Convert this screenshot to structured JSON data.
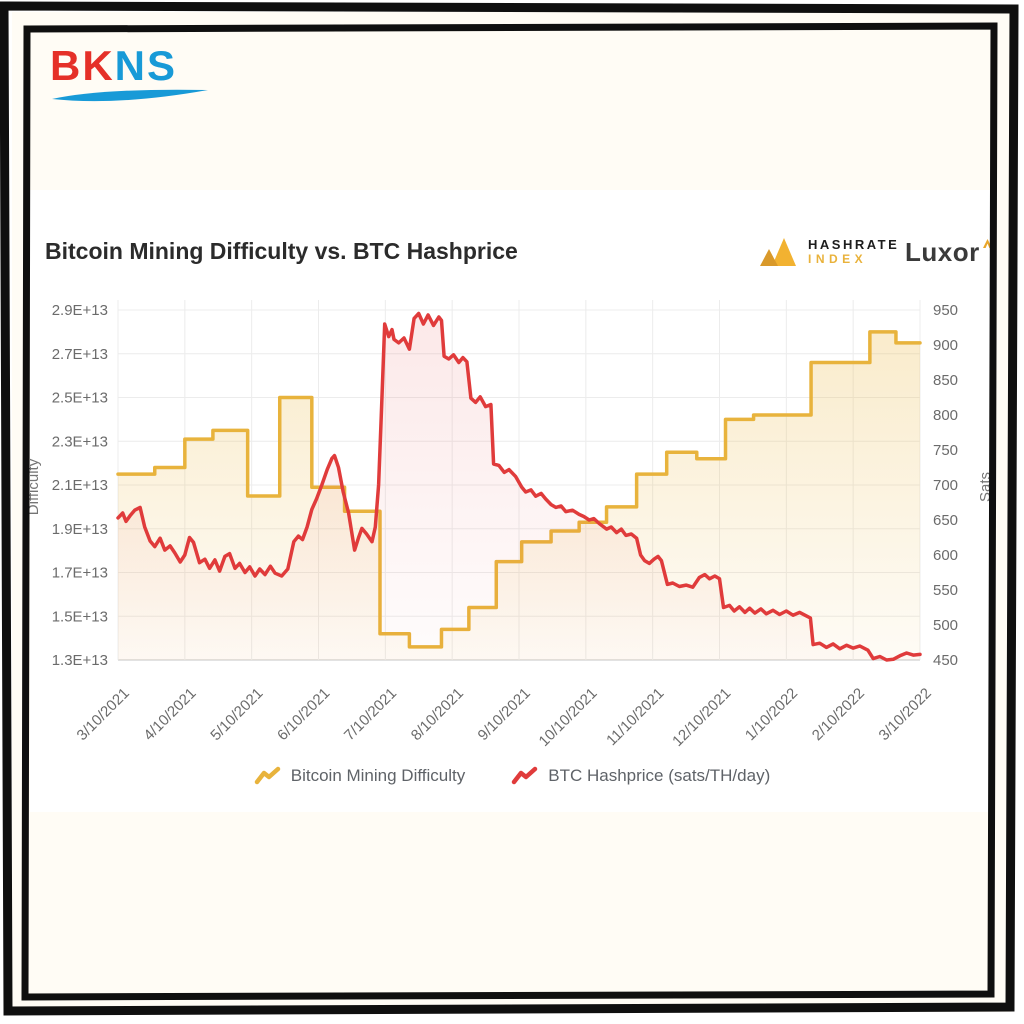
{
  "brand": {
    "bk": "BK",
    "ns": "NS"
  },
  "header": {
    "title": "Bitcoin Mining Difficulty vs. BTC Hashprice",
    "hashrate_index": {
      "line1": "HASHRATE",
      "line2": "INDEX"
    },
    "luxor": "Luxor"
  },
  "legend": [
    {
      "label": "Bitcoin Mining Difficulty",
      "color": "#e8b33c"
    },
    {
      "label": "BTC Hashprice (sats/TH/day)",
      "color": "#e03b3b"
    }
  ],
  "colors": {
    "difficulty_line": "#e8b33c",
    "hashprice_line": "#e03b3b",
    "grid": "#ececec",
    "axis_line": "#d9d9d9",
    "tick_text": "#6b6b6b",
    "bkns_red": "#e53028",
    "bkns_blue": "#189ad7",
    "hashrate_gold": "#ecb23d"
  },
  "chart_data": {
    "type": "line",
    "title": "Bitcoin Mining Difficulty vs. BTC Hashprice",
    "grid": true,
    "legend_position": "bottom",
    "x_axis": {
      "tick_labels": [
        "3/10/2021",
        "4/10/2021",
        "5/10/2021",
        "6/10/2021",
        "7/10/2021",
        "8/10/2021",
        "9/10/2021",
        "10/10/2021",
        "11/10/2021",
        "12/10/2021",
        "1/10/2022",
        "2/10/2022",
        "3/10/2022"
      ],
      "months_span": 12
    },
    "y_left": {
      "label": "Difficulty",
      "tick_labels": [
        "2.9E+13",
        "2.7E+13",
        "2.5E+13",
        "2.3E+13",
        "2.1E+13",
        "1.9E+13",
        "1.7E+13",
        "1.5E+13",
        "1.3E+13"
      ],
      "range_e13": [
        1.3,
        2.9
      ]
    },
    "y_right": {
      "label": "Sats",
      "tick_labels": [
        "950",
        "900",
        "850",
        "800",
        "750",
        "700",
        "650",
        "600",
        "550",
        "500",
        "450"
      ],
      "range": [
        450,
        950
      ]
    },
    "series": [
      {
        "name": "Bitcoin Mining Difficulty",
        "axis": "left",
        "style": "step",
        "unit": "1e13",
        "color": "#e8b33c",
        "points": [
          [
            0,
            2.15
          ],
          [
            0.55,
            2.18
          ],
          [
            1,
            2.31
          ],
          [
            1.42,
            2.35
          ],
          [
            1.94,
            2.05
          ],
          [
            2.42,
            2.5
          ],
          [
            2.9,
            2.09
          ],
          [
            3.39,
            1.98
          ],
          [
            3.92,
            1.42
          ],
          [
            4.36,
            1.36
          ],
          [
            4.84,
            1.44
          ],
          [
            5.25,
            1.54
          ],
          [
            5.66,
            1.75
          ],
          [
            6.04,
            1.84
          ],
          [
            6.48,
            1.89
          ],
          [
            6.9,
            1.93
          ],
          [
            7.31,
            2.0
          ],
          [
            7.76,
            2.15
          ],
          [
            8.21,
            2.25
          ],
          [
            8.66,
            2.22
          ],
          [
            9.09,
            2.4
          ],
          [
            9.51,
            2.42
          ],
          [
            10.37,
            2.66
          ],
          [
            11.25,
            2.8
          ],
          [
            11.64,
            2.75
          ]
        ],
        "end_month": 12
      },
      {
        "name": "BTC Hashprice (sats/TH/day)",
        "axis": "right",
        "style": "line",
        "unit": "sats/TH/day",
        "color": "#e03b3b",
        "points": [
          [
            0,
            653
          ],
          [
            0.07,
            660
          ],
          [
            0.12,
            648
          ],
          [
            0.18,
            656
          ],
          [
            0.25,
            664
          ],
          [
            0.33,
            668
          ],
          [
            0.4,
            640
          ],
          [
            0.48,
            620
          ],
          [
            0.55,
            612
          ],
          [
            0.63,
            624
          ],
          [
            0.7,
            607
          ],
          [
            0.78,
            613
          ],
          [
            0.85,
            603
          ],
          [
            0.93,
            590
          ],
          [
            1,
            600
          ],
          [
            1.07,
            625
          ],
          [
            1.13,
            618
          ],
          [
            1.22,
            589
          ],
          [
            1.3,
            594
          ],
          [
            1.37,
            581
          ],
          [
            1.45,
            593
          ],
          [
            1.52,
            577
          ],
          [
            1.6,
            598
          ],
          [
            1.67,
            602
          ],
          [
            1.75,
            581
          ],
          [
            1.82,
            588
          ],
          [
            1.9,
            575
          ],
          [
            1.97,
            583
          ],
          [
            2.05,
            570
          ],
          [
            2.12,
            580
          ],
          [
            2.2,
            572
          ],
          [
            2.28,
            584
          ],
          [
            2.35,
            574
          ],
          [
            2.45,
            570
          ],
          [
            2.54,
            580
          ],
          [
            2.63,
            619
          ],
          [
            2.7,
            627
          ],
          [
            2.76,
            622
          ],
          [
            2.83,
            640
          ],
          [
            2.9,
            665
          ],
          [
            2.97,
            680
          ],
          [
            3.05,
            700
          ],
          [
            3.13,
            722
          ],
          [
            3.2,
            738
          ],
          [
            3.24,
            742
          ],
          [
            3.3,
            725
          ],
          [
            3.37,
            690
          ],
          [
            3.45,
            660
          ],
          [
            3.54,
            607
          ],
          [
            3.6,
            625
          ],
          [
            3.65,
            638
          ],
          [
            3.72,
            630
          ],
          [
            3.8,
            619
          ],
          [
            3.85,
            640
          ],
          [
            3.9,
            700
          ],
          [
            3.94,
            800
          ],
          [
            3.99,
            930
          ],
          [
            4.05,
            912
          ],
          [
            4.1,
            922
          ],
          [
            4.13,
            908
          ],
          [
            4.2,
            903
          ],
          [
            4.28,
            910
          ],
          [
            4.36,
            894
          ],
          [
            4.43,
            938
          ],
          [
            4.5,
            945
          ],
          [
            4.57,
            930
          ],
          [
            4.64,
            943
          ],
          [
            4.72,
            928
          ],
          [
            4.8,
            940
          ],
          [
            4.84,
            935
          ],
          [
            4.88,
            884
          ],
          [
            4.95,
            880
          ],
          [
            5.02,
            886
          ],
          [
            5.1,
            875
          ],
          [
            5.16,
            882
          ],
          [
            5.22,
            876
          ],
          [
            5.28,
            824
          ],
          [
            5.35,
            818
          ],
          [
            5.42,
            826
          ],
          [
            5.5,
            812
          ],
          [
            5.58,
            815
          ],
          [
            5.62,
            730
          ],
          [
            5.7,
            728
          ],
          [
            5.78,
            718
          ],
          [
            5.85,
            722
          ],
          [
            5.95,
            712
          ],
          [
            6.04,
            697
          ],
          [
            6.1,
            690
          ],
          [
            6.18,
            693
          ],
          [
            6.25,
            684
          ],
          [
            6.33,
            688
          ],
          [
            6.4,
            680
          ],
          [
            6.48,
            672
          ],
          [
            6.55,
            668
          ],
          [
            6.63,
            670
          ],
          [
            6.7,
            662
          ],
          [
            6.8,
            664
          ],
          [
            6.9,
            658
          ],
          [
            6.97,
            655
          ],
          [
            7.05,
            650
          ],
          [
            7.12,
            652
          ],
          [
            7.2,
            645
          ],
          [
            7.31,
            637
          ],
          [
            7.38,
            640
          ],
          [
            7.46,
            632
          ],
          [
            7.53,
            637
          ],
          [
            7.6,
            628
          ],
          [
            7.68,
            630
          ],
          [
            7.76,
            624
          ],
          [
            7.82,
            600
          ],
          [
            7.88,
            592
          ],
          [
            7.95,
            588
          ],
          [
            8.02,
            594
          ],
          [
            8.08,
            598
          ],
          [
            8.13,
            592
          ],
          [
            8.22,
            558
          ],
          [
            8.3,
            560
          ],
          [
            8.4,
            555
          ],
          [
            8.5,
            557
          ],
          [
            8.6,
            554
          ],
          [
            8.7,
            568
          ],
          [
            8.78,
            572
          ],
          [
            8.85,
            566
          ],
          [
            8.93,
            570
          ],
          [
            9,
            566
          ],
          [
            9.06,
            525
          ],
          [
            9.15,
            528
          ],
          [
            9.22,
            520
          ],
          [
            9.3,
            526
          ],
          [
            9.38,
            518
          ],
          [
            9.45,
            524
          ],
          [
            9.53,
            517
          ],
          [
            9.62,
            523
          ],
          [
            9.7,
            516
          ],
          [
            9.8,
            521
          ],
          [
            9.9,
            515
          ],
          [
            10,
            520
          ],
          [
            10.1,
            514
          ],
          [
            10.2,
            518
          ],
          [
            10.3,
            513
          ],
          [
            10.36,
            510
          ],
          [
            10.4,
            472
          ],
          [
            10.5,
            474
          ],
          [
            10.6,
            468
          ],
          [
            10.7,
            473
          ],
          [
            10.8,
            466
          ],
          [
            10.9,
            471
          ],
          [
            11,
            467
          ],
          [
            11.1,
            470
          ],
          [
            11.22,
            464
          ],
          [
            11.3,
            452
          ],
          [
            11.4,
            455
          ],
          [
            11.5,
            450
          ],
          [
            11.6,
            451
          ],
          [
            11.7,
            456
          ],
          [
            11.8,
            460
          ],
          [
            11.9,
            457
          ],
          [
            12,
            458
          ]
        ]
      }
    ]
  }
}
